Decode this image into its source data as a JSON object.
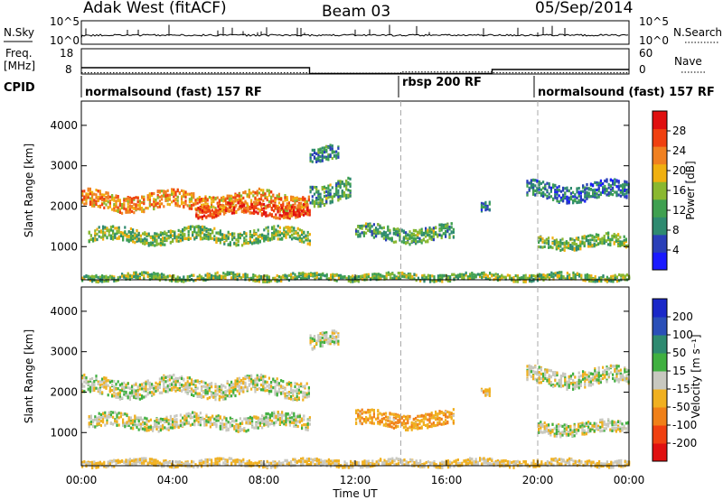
{
  "header": {
    "radar": "Adak West (fitACF)",
    "beam": "Beam 03",
    "date": "05/Sep/2014"
  },
  "top_panel": {
    "left_label": "N.Sky",
    "right_label": "N.Search",
    "left_ticks": [
      "10^5",
      "10^0"
    ],
    "right_ticks": [
      "10^5",
      "10^0"
    ]
  },
  "freq_panel": {
    "left_label_1": "Freq.",
    "left_label_2": "[MHz]",
    "right_label": "Nave",
    "left_ticks": [
      "18",
      "8"
    ],
    "right_ticks": [
      "60",
      "0"
    ]
  },
  "cpid": {
    "label": "CPID",
    "modes": [
      {
        "text": "normalsound (fast) 157 RF",
        "start_hour": 0
      },
      {
        "text": "rbsp 200 RF",
        "start_hour": 14
      },
      {
        "text": "normalsound (fast) 157 RF",
        "start_hour": 20
      }
    ]
  },
  "x_axis": {
    "label": "Time UT",
    "ticks": [
      "00:00",
      "04:00",
      "08:00",
      "12:00",
      "16:00",
      "20:00",
      "00:00"
    ]
  },
  "power_panel": {
    "ylabel": "Slant Range [km]",
    "yticks": [
      "4000",
      "3000",
      "2000",
      "1000"
    ],
    "colorbar_label": "Power [dB]",
    "colorbar_ticks": [
      "28",
      "24",
      "20",
      "16",
      "12",
      "8",
      "4"
    ],
    "colors": [
      "#1a1aff",
      "#2a3fb8",
      "#2e8a70",
      "#3fa050",
      "#8ab830",
      "#f0b010",
      "#f08020",
      "#f04010",
      "#e01010"
    ]
  },
  "velocity_panel": {
    "ylabel": "Slant Range [km]",
    "yticks": [
      "4000",
      "3000",
      "2000",
      "1000"
    ],
    "colorbar_label": "Velocity [m s⁻¹]",
    "colorbar_ticks": [
      "200",
      "100",
      "50",
      "15",
      "-15",
      "-50",
      "-100",
      "-200"
    ],
    "colors": [
      "#1a28c8",
      "#2a4fb8",
      "#2e8a70",
      "#40b040",
      "#c8c8c0",
      "#f0b020",
      "#f08018",
      "#f04010",
      "#e01010"
    ]
  },
  "chart_data": {
    "type": "heatmap",
    "x_range_hours": [
      0,
      24
    ],
    "y_range_km": [
      180,
      4600
    ],
    "mode_boundaries_hours": [
      14,
      20
    ],
    "power_bands": [
      {
        "t0": 0.0,
        "t1": 10.0,
        "r_center": 2150,
        "r_width": 420,
        "value_db": 22
      },
      {
        "t0": 5.0,
        "t1": 10.0,
        "r_center": 1950,
        "r_width": 300,
        "value_db": 26
      },
      {
        "t0": 0.3,
        "t1": 10.0,
        "r_center": 1300,
        "r_width": 330,
        "value_db": 14
      },
      {
        "t0": 10.0,
        "t1": 11.8,
        "r_center": 2400,
        "r_width": 500,
        "value_db": 12
      },
      {
        "t0": 10.0,
        "t1": 11.3,
        "r_center": 3300,
        "r_width": 350,
        "value_db": 10
      },
      {
        "t0": 12.0,
        "t1": 16.3,
        "r_center": 1350,
        "r_width": 350,
        "value_db": 12
      },
      {
        "t0": 17.5,
        "t1": 17.9,
        "r_center": 2000,
        "r_width": 200,
        "value_db": 8
      },
      {
        "t0": 19.5,
        "t1": 24.0,
        "r_center": 2400,
        "r_width": 400,
        "value_db": 8
      },
      {
        "t0": 20.0,
        "t1": 24.0,
        "r_center": 1150,
        "r_width": 300,
        "value_db": 14
      },
      {
        "t0": 0.0,
        "t1": 24.0,
        "r_center": 280,
        "r_width": 160,
        "value_db": 14
      }
    ],
    "velocity_bands": [
      {
        "t0": 0.0,
        "t1": 10.0,
        "r_center": 2150,
        "r_width": 420,
        "value_ms": 0
      },
      {
        "t0": 0.3,
        "t1": 10.0,
        "r_center": 1300,
        "r_width": 330,
        "value_ms": 0
      },
      {
        "t0": 10.0,
        "t1": 11.3,
        "r_center": 3300,
        "r_width": 350,
        "value_ms": 0
      },
      {
        "t0": 12.0,
        "t1": 16.3,
        "r_center": 1350,
        "r_width": 350,
        "value_ms": -40
      },
      {
        "t0": 17.5,
        "t1": 17.9,
        "r_center": 2000,
        "r_width": 200,
        "value_ms": -30
      },
      {
        "t0": 19.5,
        "t1": 24.0,
        "r_center": 2400,
        "r_width": 400,
        "value_ms": 0
      },
      {
        "t0": 20.0,
        "t1": 24.0,
        "r_center": 1150,
        "r_width": 300,
        "value_ms": 0
      },
      {
        "t0": 0.0,
        "t1": 24.0,
        "r_center": 280,
        "r_width": 160,
        "value_ms": -20
      }
    ],
    "frequency_steps_mhz": [
      {
        "t0": 0,
        "t1": 10,
        "value": 10.5
      },
      {
        "t0": 10,
        "t1": 18,
        "value": 8.2
      },
      {
        "t0": 18,
        "t1": 24,
        "value": 9.8
      }
    ],
    "nave_steps": [
      {
        "t0": 0,
        "t1": 10,
        "value": 3
      },
      {
        "t0": 10,
        "t1": 14,
        "value": 2
      },
      {
        "t0": 14,
        "t1": 18,
        "value": 5
      },
      {
        "t0": 18,
        "t1": 24,
        "value": 3
      }
    ],
    "power_colorbar_range_db": [
      0,
      32
    ],
    "velocity_colorbar_values": [
      -200,
      -100,
      -50,
      -15,
      15,
      50,
      100,
      200
    ]
  }
}
